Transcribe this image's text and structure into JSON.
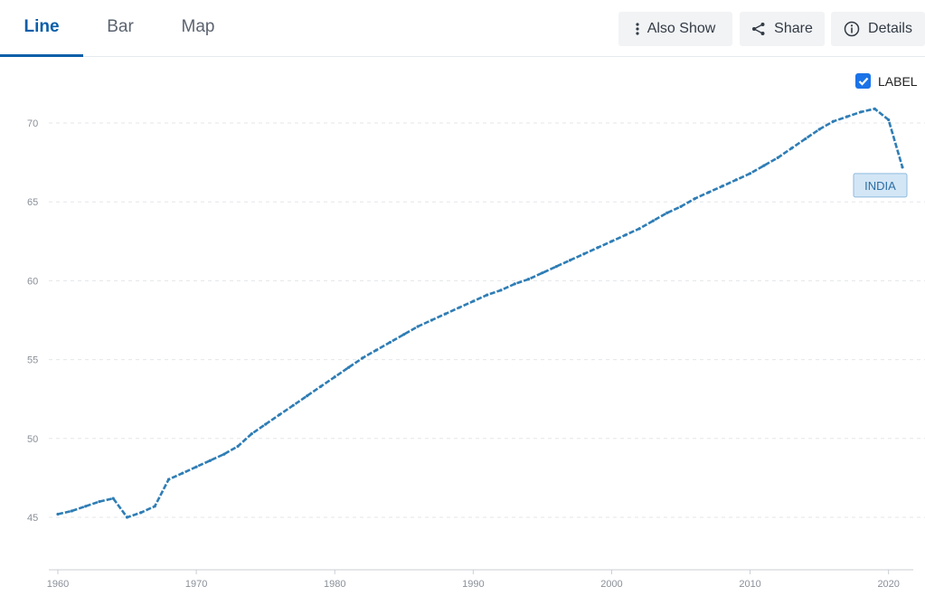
{
  "tabs": [
    {
      "label": "Line",
      "active": true
    },
    {
      "label": "Bar",
      "active": false
    },
    {
      "label": "Map",
      "active": false
    }
  ],
  "toolbar": {
    "also_show": {
      "label": "Also Show",
      "icon": "vertical-dots-icon"
    },
    "share": {
      "label": "Share",
      "icon": "share-icon"
    },
    "details": {
      "label": "Details",
      "icon": "info-circle-icon"
    }
  },
  "label_toggle": {
    "label": "LABEL",
    "checked": true
  },
  "colors": {
    "accent": "#0b5ea8",
    "line": "#2e7db5",
    "checkbox": "#1a73e8",
    "series_label_bg": "#d3e6f5"
  },
  "chart_data": {
    "type": "line",
    "title": "",
    "xlabel": "",
    "ylabel": "",
    "xlim": [
      1960,
      2021
    ],
    "ylim": [
      42,
      73
    ],
    "x_ticks": [
      1960,
      1970,
      1980,
      1990,
      2000,
      2010,
      2020
    ],
    "y_ticks": [
      45,
      50,
      55,
      60,
      65,
      70
    ],
    "grid": "horizontal-dashed",
    "series": [
      {
        "name": "INDIA",
        "x": [
          1960,
          1961,
          1962,
          1963,
          1964,
          1965,
          1966,
          1967,
          1968,
          1969,
          1970,
          1971,
          1972,
          1973,
          1974,
          1975,
          1976,
          1977,
          1978,
          1979,
          1980,
          1981,
          1982,
          1983,
          1984,
          1985,
          1986,
          1987,
          1988,
          1989,
          1990,
          1991,
          1992,
          1993,
          1994,
          1995,
          1996,
          1997,
          1998,
          1999,
          2000,
          2001,
          2002,
          2003,
          2004,
          2005,
          2006,
          2007,
          2008,
          2009,
          2010,
          2011,
          2012,
          2013,
          2014,
          2015,
          2016,
          2017,
          2018,
          2019,
          2020,
          2021
        ],
        "values": [
          45.2,
          45.4,
          45.7,
          46.0,
          46.2,
          45.0,
          45.3,
          45.7,
          47.4,
          47.8,
          48.2,
          48.6,
          49.0,
          49.5,
          50.3,
          50.9,
          51.5,
          52.1,
          52.7,
          53.3,
          53.9,
          54.5,
          55.1,
          55.6,
          56.1,
          56.6,
          57.1,
          57.5,
          57.9,
          58.3,
          58.7,
          59.1,
          59.4,
          59.8,
          60.1,
          60.5,
          60.9,
          61.3,
          61.7,
          62.1,
          62.5,
          62.9,
          63.3,
          63.8,
          64.3,
          64.7,
          65.2,
          65.6,
          66.0,
          66.4,
          66.8,
          67.3,
          67.8,
          68.4,
          69.0,
          69.6,
          70.1,
          70.4,
          70.7,
          70.9,
          70.2,
          67.2
        ]
      }
    ]
  }
}
